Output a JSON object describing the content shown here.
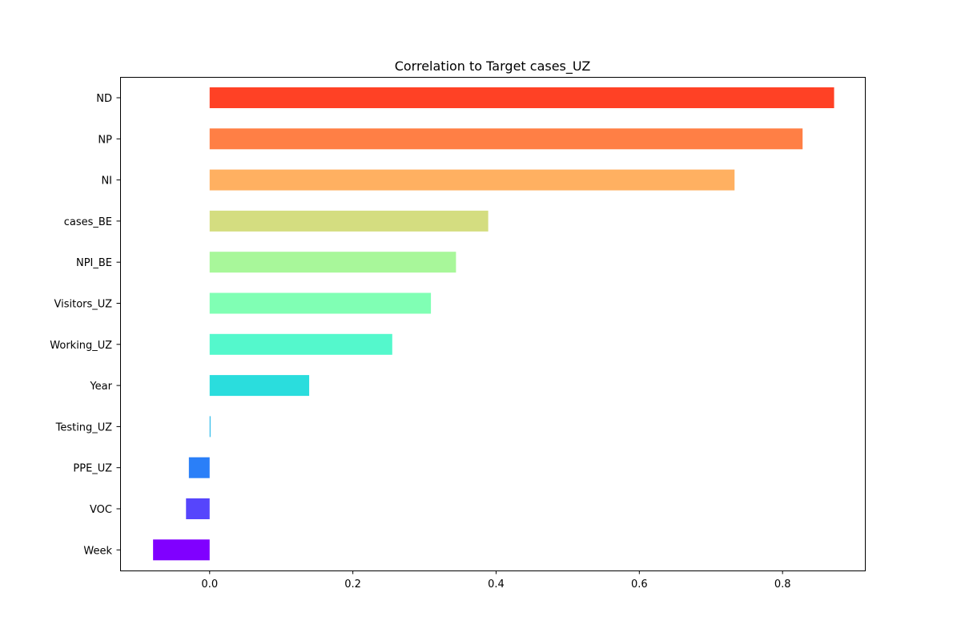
{
  "chart_data": {
    "type": "bar",
    "orientation": "horizontal",
    "title": "Correlation to Target cases_UZ",
    "xlabel": "",
    "ylabel": "",
    "xlim": [
      -0.125,
      0.915
    ],
    "xticks": [
      "0.0",
      "0.2",
      "0.4",
      "0.6",
      "0.8"
    ],
    "xtick_values": [
      0.0,
      0.2,
      0.4,
      0.6,
      0.8
    ],
    "grid": false,
    "legend": "none",
    "categories": [
      "ND",
      "NP",
      "NI",
      "cases_BE",
      "NPI_BE",
      "Visitors_UZ",
      "Working_UZ",
      "Year",
      "Testing_UZ",
      "PPE_UZ",
      "VOC",
      "Week"
    ],
    "values": [
      0.872,
      0.828,
      0.733,
      0.389,
      0.344,
      0.309,
      0.255,
      0.139,
      0.001,
      -0.029,
      -0.033,
      -0.079
    ],
    "colors": [
      "#ff4125",
      "#ff7f45",
      "#ffb061",
      "#d4dd80",
      "#a8f79a",
      "#80ffb4",
      "#54f8cc",
      "#2adddd",
      "#06aee7",
      "#2a7ff8",
      "#5645fc",
      "#8000ff"
    ]
  }
}
